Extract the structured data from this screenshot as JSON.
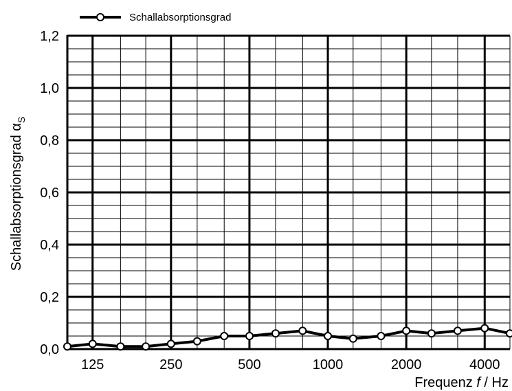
{
  "chart_data": {
    "type": "line",
    "ylabel": "Schallabsorptionsgrad α",
    "ylabel_sub": "S",
    "xlabel_prefix": "Frequenz ",
    "xlabel_var": "f",
    "xlabel_suffix": " / Hz",
    "y_ticks": [
      "0,0",
      "0,2",
      "0,4",
      "0,6",
      "0,8",
      "1,0",
      "1,2"
    ],
    "x_ticks": [
      "125",
      "250",
      "500",
      "1000",
      "2000",
      "4000"
    ],
    "ylim": [
      0,
      1.2
    ],
    "grid": true,
    "legend_position": "top-left",
    "series": [
      {
        "name": "Schallabsorptionsgrad",
        "color": "#000000",
        "x": [
          100,
          125,
          160,
          200,
          250,
          315,
          400,
          500,
          630,
          800,
          1000,
          1250,
          1600,
          2000,
          2500,
          3150,
          4000,
          5000
        ],
        "values": [
          0.01,
          0.02,
          0.01,
          0.01,
          0.02,
          0.03,
          0.05,
          0.05,
          0.06,
          0.07,
          0.05,
          0.04,
          0.05,
          0.07,
          0.06,
          0.07,
          0.08,
          0.06
        ]
      }
    ]
  }
}
